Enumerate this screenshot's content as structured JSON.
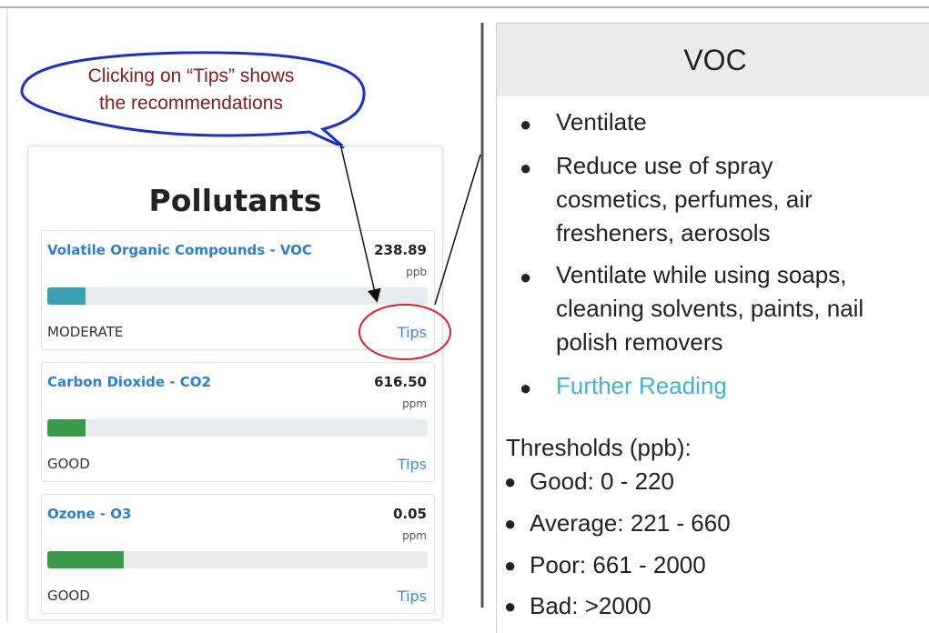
{
  "callout": {
    "lines": [
      "Clicking on “Tips” shows",
      "the recommendations"
    ]
  },
  "card": {
    "title": "Pollutants",
    "items": [
      {
        "name": "Volatile Organic Compounds - VOC",
        "value": "238.89",
        "unit": "ppb",
        "status": "MODERATE",
        "tips": "Tips"
      },
      {
        "name": "Carbon Dioxide - CO2",
        "value": "616.50",
        "unit": "ppm",
        "status": "GOOD",
        "tips": "Tips"
      },
      {
        "name": "Ozone - O3",
        "value": "0.05",
        "unit": "ppm",
        "status": "GOOD",
        "tips": "Tips"
      }
    ]
  },
  "panel": {
    "title": "VOC",
    "tips": [
      [
        "Ventilate"
      ],
      [
        "Reduce use of spray",
        "cosmetics, perfumes, air",
        "fresheners, aerosols"
      ],
      [
        "Ventilate while using soaps,",
        "cleaning solvents, paints, nail",
        "polish removers"
      ]
    ],
    "link": "Further Reading",
    "thresholds_title": "Thresholds  (ppb):",
    "thresholds": [
      "Good: 0 - 220",
      "Average: 221 - 660",
      "Poor: 661 - 2000",
      "Bad: >2000"
    ]
  }
}
